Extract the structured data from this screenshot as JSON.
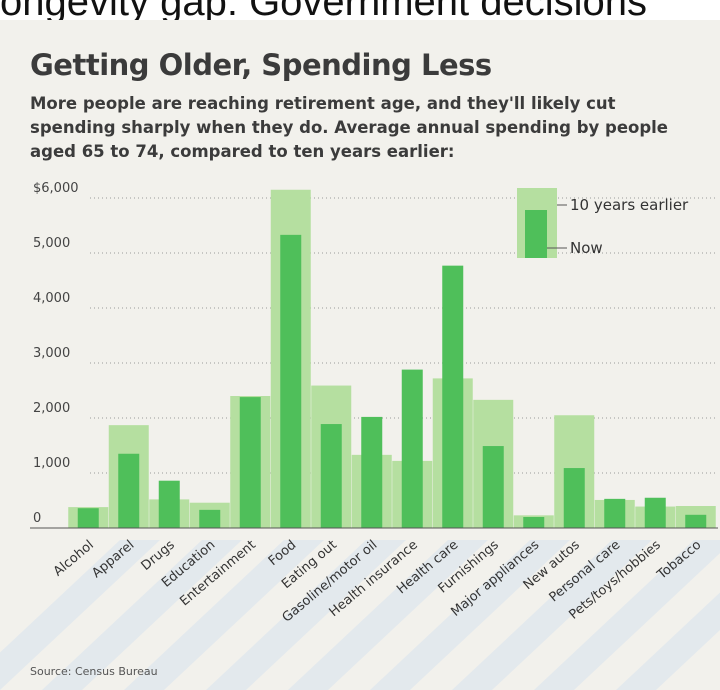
{
  "header_clip": "ongevity gap: Government decisions",
  "chart_data": {
    "type": "bar",
    "title": "Getting Older, Spending Less",
    "subtitle": "More people are reaching retirement age, and they'll likely cut spending sharply when they do. Average annual spending by people aged 65 to 74, compared to ten years earlier:",
    "source": "Source: Census Bureau",
    "ylim": [
      0,
      6000
    ],
    "y_ticks": [
      "$6,000",
      "5,000",
      "4,000",
      "3,000",
      "2,000",
      "1,000",
      "0"
    ],
    "categories": [
      "Alcohol",
      "Apparel",
      "Drugs",
      "Education",
      "Entertainment",
      "Food",
      "Eating out",
      "Gasoline/motor oil",
      "Health insurance",
      "Health care",
      "Furnishings",
      "Major appliances",
      "New autos",
      "Personal care",
      "Pets/toys/hobbies",
      "Tobacco"
    ],
    "series": [
      {
        "name": "10 years earlier",
        "color": "#b5dfa0",
        "values": [
          380,
          1870,
          520,
          460,
          2400,
          6150,
          2590,
          1330,
          1220,
          2720,
          2330,
          230,
          2050,
          510,
          390,
          400
        ]
      },
      {
        "name": "Now",
        "color": "#4fbf5a",
        "values": [
          360,
          1350,
          860,
          330,
          2380,
          5330,
          1890,
          2020,
          2880,
          4770,
          1490,
          200,
          1090,
          530,
          550,
          240
        ]
      }
    ],
    "legend": "top-right",
    "grid": true
  }
}
